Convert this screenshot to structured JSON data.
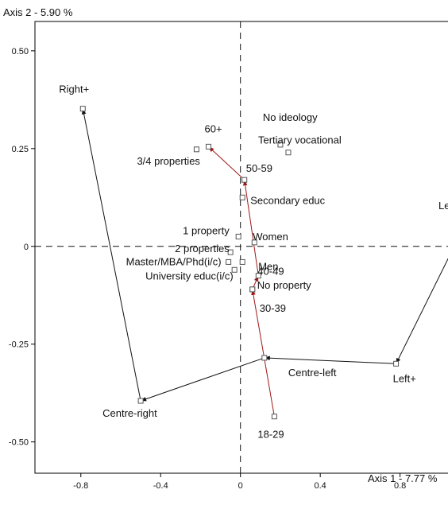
{
  "chart_data": {
    "type": "scatter",
    "title": "",
    "xlabel": "Axis 1  -  7.77 %",
    "ylabel": "Axis 2  -  5.90 %",
    "xlim": [
      -1.03,
      1.12
    ],
    "ylim": [
      -0.58,
      0.575
    ],
    "x_ticks": [
      -0.8,
      -0.4,
      0,
      0.4,
      0.8
    ],
    "x_tick_labels": [
      "-0.8",
      "-0.4",
      "0",
      "0.4",
      "0.8"
    ],
    "y_ticks": [
      -0.5,
      -0.25,
      0,
      0.25,
      0.5
    ],
    "y_tick_labels": [
      "-0.50",
      "-0.25",
      "0",
      "0.25",
      "0.50"
    ],
    "reference_lines": "dashed lines at x = 0 and y = 0",
    "grid": false,
    "legend": "none",
    "colors": {
      "ideology_path": "#111111",
      "age_path": "#a01818",
      "points": "#555555"
    },
    "points": [
      {
        "label": "Right+",
        "x": -0.79,
        "y": 0.352
      },
      {
        "label": "Centre-right",
        "x": -0.5,
        "y": -0.395
      },
      {
        "label": "Centre-left",
        "x": 0.12,
        "y": -0.285
      },
      {
        "label": "Left+",
        "x": 0.78,
        "y": -0.3
      },
      {
        "label": "Left++",
        "x": 1.12,
        "y": 0.05
      },
      {
        "label": "No ideology",
        "x": 0.2,
        "y": 0.26
      },
      {
        "label": "Tertiary vocational",
        "x": 0.24,
        "y": 0.24
      },
      {
        "label": "60+",
        "x": -0.16,
        "y": 0.255
      },
      {
        "label": "3/4 properties",
        "x": -0.22,
        "y": 0.248
      },
      {
        "label": "50-59",
        "x": 0.02,
        "y": 0.17
      },
      {
        "label": "Secondary educ",
        "x": 0.01,
        "y": 0.125
      },
      {
        "label": "1 property",
        "x": -0.01,
        "y": 0.025
      },
      {
        "label": "2 properties",
        "x": -0.05,
        "y": -0.015
      },
      {
        "label": "Women",
        "x": 0.07,
        "y": 0.01
      },
      {
        "label": "Men",
        "x": 0.01,
        "y": -0.04
      },
      {
        "label": "Master/MBA/Phd(i/c)",
        "x": -0.06,
        "y": -0.04
      },
      {
        "label": "University educ(i/c)",
        "x": -0.03,
        "y": -0.06
      },
      {
        "label": "40-49",
        "x": 0.09,
        "y": -0.075
      },
      {
        "label": "No property",
        "x": 0.06,
        "y": -0.11
      },
      {
        "label": "30-39",
        "x": 0.06,
        "y": -0.11
      },
      {
        "label": "18-29",
        "x": 0.17,
        "y": -0.435
      }
    ],
    "paths": [
      {
        "color_key": "ideology_path",
        "labels": [
          "Left++",
          "Left+",
          "Centre-left",
          "Centre-right",
          "Right+"
        ]
      },
      {
        "color_key": "age_path",
        "labels": [
          "18-29",
          "30-39",
          "40-49",
          "50-59",
          "60+"
        ]
      }
    ]
  }
}
